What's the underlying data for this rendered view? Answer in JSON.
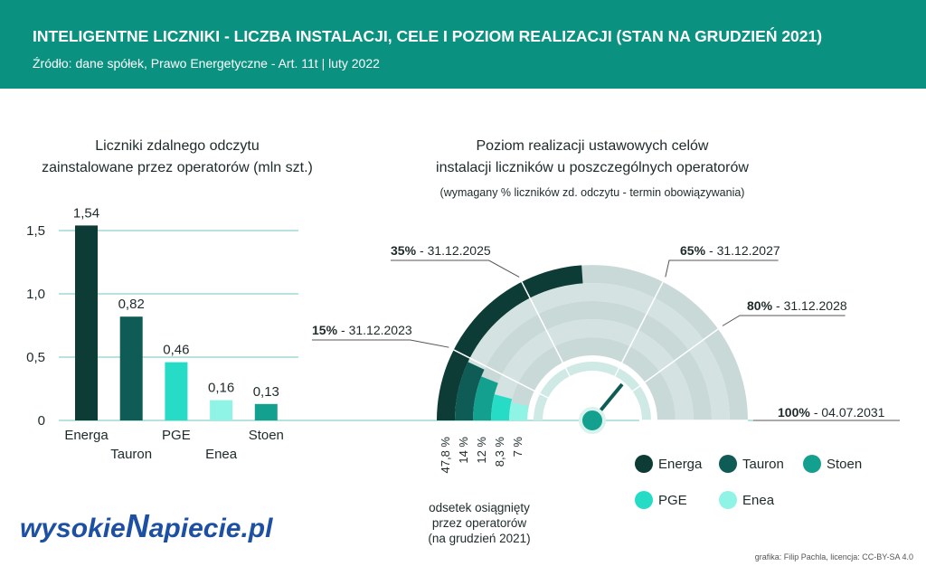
{
  "header": {
    "title": "INTELIGENTNE LICZNIKI - LICZBA INSTALACJI, CELE I POZIOM REALIZACJI (STAN NA GRUDZIEŃ 2021)",
    "subtitle": "Źródło: dane spółek, Prawo Energetyczne - Art. 11t | luty 2022"
  },
  "chart_data": [
    {
      "type": "bar",
      "title": [
        "Liczniki zdalnego odczytu",
        "zainstalowane przez operatorów (mln szt.)"
      ],
      "categories": [
        "Energa",
        "Tauron",
        "PGE",
        "Enea",
        "Stoen"
      ],
      "values": [
        1.54,
        0.82,
        0.46,
        0.16,
        0.13
      ],
      "value_labels": [
        "1,54",
        "0,82",
        "0,46",
        "0,16",
        "0,13"
      ],
      "colors": [
        "#0d3b36",
        "#0e5c55",
        "#27dcc6",
        "#8ff3e6",
        "#14a08f"
      ],
      "ylim": [
        0,
        1.7
      ],
      "yticks": [
        0,
        {
          "value": 0.5,
          "label": "0,5"
        },
        {
          "value": 1.0,
          "label": "1,0"
        },
        {
          "value": 1.5,
          "label": "1,5"
        }
      ],
      "grid": true
    },
    {
      "type": "radial_bar",
      "title": [
        "Poziom realizacji ustawowych celów",
        "instalacji liczników u poszczególnych operatorów"
      ],
      "subtitle": "(wymagany % liczników zd. odczytu - termin obowiązywania)",
      "categories": [
        "Energa",
        "Tauron",
        "Stoen",
        "PGE",
        "Enea"
      ],
      "values": [
        47.8,
        14,
        12,
        8.3,
        7
      ],
      "value_labels": [
        "47,8 %",
        "14 %",
        "12 %",
        "8,3 %",
        "7 %"
      ],
      "colors": [
        "#0d3b36",
        "#0e5c55",
        "#14a08f",
        "#27dcc6",
        "#8ff3e6"
      ],
      "xlim": [
        0,
        100
      ],
      "targets": [
        {
          "value": 15,
          "label": "15%",
          "date": "- 31.12.2023"
        },
        {
          "value": 35,
          "label": "35%",
          "date": "- 31.12.2025"
        },
        {
          "value": 65,
          "label": "65%",
          "date": "- 31.12.2027"
        },
        {
          "value": 80,
          "label": "80%",
          "date": "- 31.12.2028"
        },
        {
          "value": 100,
          "label": "100%",
          "date": "- 04.07.2031"
        }
      ],
      "annotation": [
        "odsetek osiągnięty",
        "przez operatorów",
        "(na grudzień 2021)"
      ]
    }
  ],
  "footer": {
    "logo": [
      "wysokie",
      "N",
      "apiecie.pl"
    ],
    "credit": "grafika: Filip Pachla, licencja: CC-BY-SA 4.0"
  }
}
